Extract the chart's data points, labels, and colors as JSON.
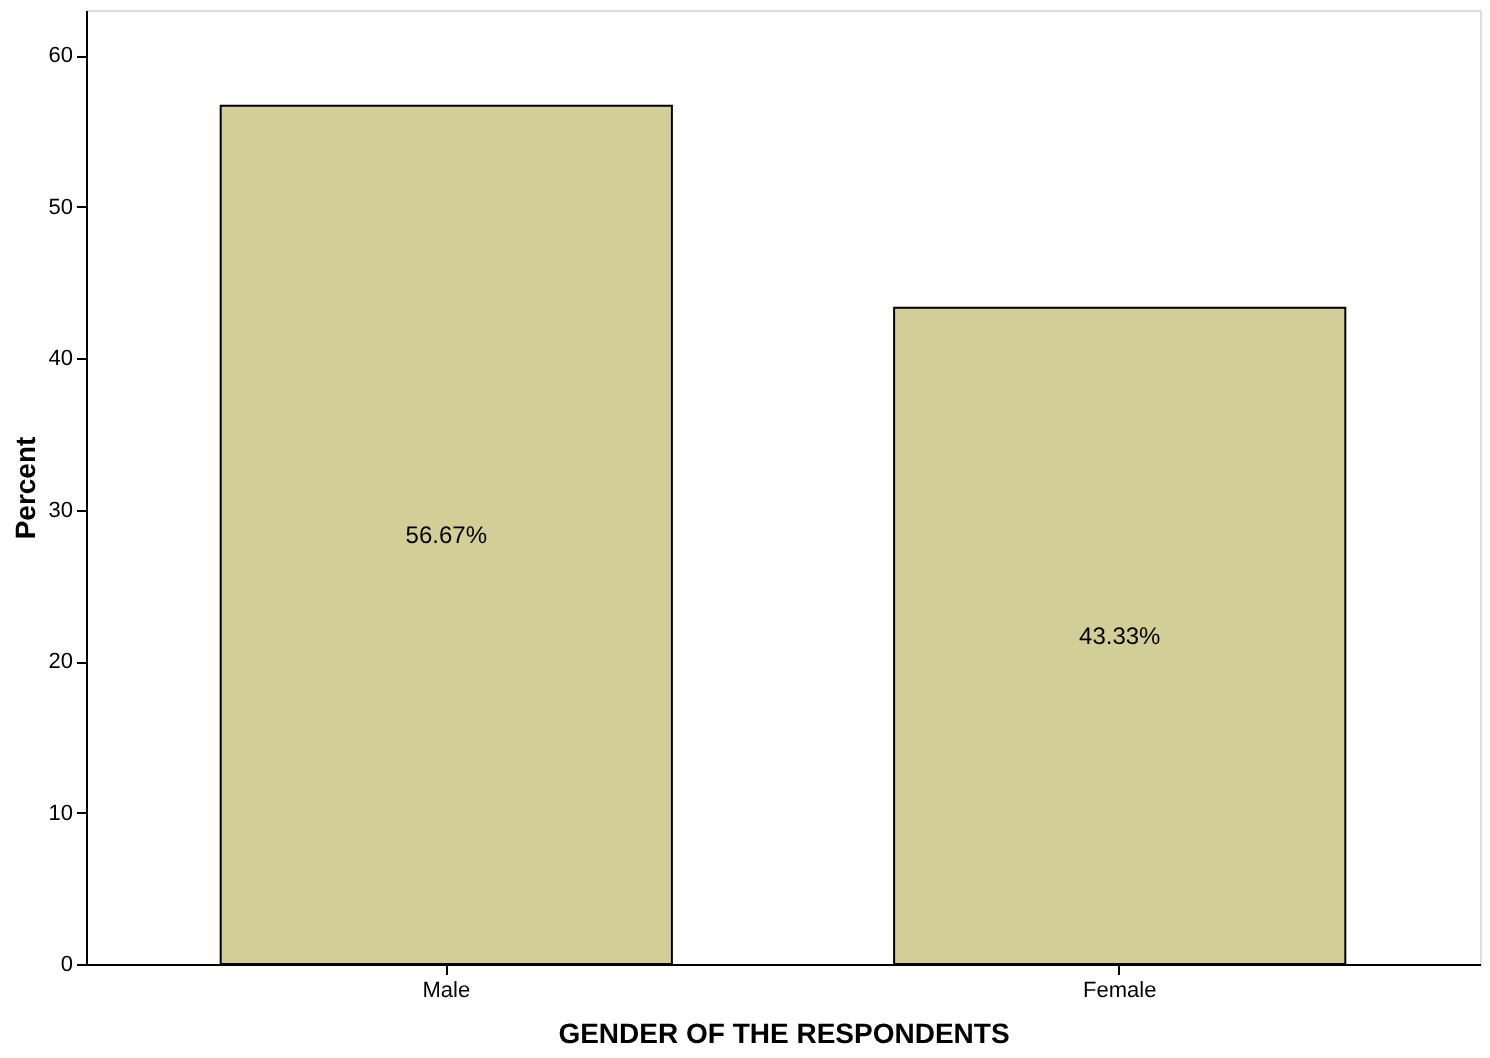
{
  "chart_data": {
    "type": "bar",
    "xlabel": "GENDER OF THE RESPONDENTS",
    "ylabel": "Percent",
    "categories": [
      "Male",
      "Female"
    ],
    "values": [
      56.67,
      43.33
    ],
    "color": "#d3ce97",
    "value_labels": [
      "56.67%",
      "43.33%"
    ],
    "ylim": [
      0,
      63
    ],
    "yticks": [
      0,
      10,
      20,
      30,
      40,
      50,
      60
    ],
    "grid": false
  }
}
